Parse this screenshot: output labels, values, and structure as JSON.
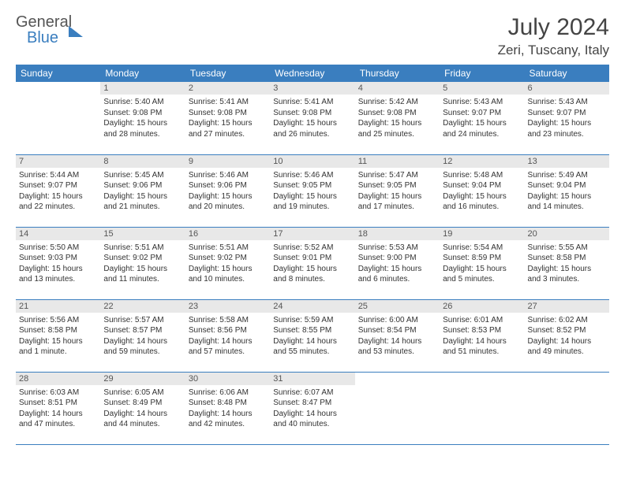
{
  "logo": {
    "line1": "General",
    "line2": "Blue"
  },
  "title": "July 2024",
  "location": "Zeri, Tuscany, Italy",
  "colors": {
    "accent": "#3a7ebf",
    "dayHeaderBg": "#e8e8e8",
    "text": "#333"
  },
  "weekdays": [
    "Sunday",
    "Monday",
    "Tuesday",
    "Wednesday",
    "Thursday",
    "Friday",
    "Saturday"
  ],
  "weeks": [
    [
      null,
      {
        "n": "1",
        "sr": "5:40 AM",
        "ss": "9:08 PM",
        "dl": "15 hours and 28 minutes."
      },
      {
        "n": "2",
        "sr": "5:41 AM",
        "ss": "9:08 PM",
        "dl": "15 hours and 27 minutes."
      },
      {
        "n": "3",
        "sr": "5:41 AM",
        "ss": "9:08 PM",
        "dl": "15 hours and 26 minutes."
      },
      {
        "n": "4",
        "sr": "5:42 AM",
        "ss": "9:08 PM",
        "dl": "15 hours and 25 minutes."
      },
      {
        "n": "5",
        "sr": "5:43 AM",
        "ss": "9:07 PM",
        "dl": "15 hours and 24 minutes."
      },
      {
        "n": "6",
        "sr": "5:43 AM",
        "ss": "9:07 PM",
        "dl": "15 hours and 23 minutes."
      }
    ],
    [
      {
        "n": "7",
        "sr": "5:44 AM",
        "ss": "9:07 PM",
        "dl": "15 hours and 22 minutes."
      },
      {
        "n": "8",
        "sr": "5:45 AM",
        "ss": "9:06 PM",
        "dl": "15 hours and 21 minutes."
      },
      {
        "n": "9",
        "sr": "5:46 AM",
        "ss": "9:06 PM",
        "dl": "15 hours and 20 minutes."
      },
      {
        "n": "10",
        "sr": "5:46 AM",
        "ss": "9:05 PM",
        "dl": "15 hours and 19 minutes."
      },
      {
        "n": "11",
        "sr": "5:47 AM",
        "ss": "9:05 PM",
        "dl": "15 hours and 17 minutes."
      },
      {
        "n": "12",
        "sr": "5:48 AM",
        "ss": "9:04 PM",
        "dl": "15 hours and 16 minutes."
      },
      {
        "n": "13",
        "sr": "5:49 AM",
        "ss": "9:04 PM",
        "dl": "15 hours and 14 minutes."
      }
    ],
    [
      {
        "n": "14",
        "sr": "5:50 AM",
        "ss": "9:03 PM",
        "dl": "15 hours and 13 minutes."
      },
      {
        "n": "15",
        "sr": "5:51 AM",
        "ss": "9:02 PM",
        "dl": "15 hours and 11 minutes."
      },
      {
        "n": "16",
        "sr": "5:51 AM",
        "ss": "9:02 PM",
        "dl": "15 hours and 10 minutes."
      },
      {
        "n": "17",
        "sr": "5:52 AM",
        "ss": "9:01 PM",
        "dl": "15 hours and 8 minutes."
      },
      {
        "n": "18",
        "sr": "5:53 AM",
        "ss": "9:00 PM",
        "dl": "15 hours and 6 minutes."
      },
      {
        "n": "19",
        "sr": "5:54 AM",
        "ss": "8:59 PM",
        "dl": "15 hours and 5 minutes."
      },
      {
        "n": "20",
        "sr": "5:55 AM",
        "ss": "8:58 PM",
        "dl": "15 hours and 3 minutes."
      }
    ],
    [
      {
        "n": "21",
        "sr": "5:56 AM",
        "ss": "8:58 PM",
        "dl": "15 hours and 1 minute."
      },
      {
        "n": "22",
        "sr": "5:57 AM",
        "ss": "8:57 PM",
        "dl": "14 hours and 59 minutes."
      },
      {
        "n": "23",
        "sr": "5:58 AM",
        "ss": "8:56 PM",
        "dl": "14 hours and 57 minutes."
      },
      {
        "n": "24",
        "sr": "5:59 AM",
        "ss": "8:55 PM",
        "dl": "14 hours and 55 minutes."
      },
      {
        "n": "25",
        "sr": "6:00 AM",
        "ss": "8:54 PM",
        "dl": "14 hours and 53 minutes."
      },
      {
        "n": "26",
        "sr": "6:01 AM",
        "ss": "8:53 PM",
        "dl": "14 hours and 51 minutes."
      },
      {
        "n": "27",
        "sr": "6:02 AM",
        "ss": "8:52 PM",
        "dl": "14 hours and 49 minutes."
      }
    ],
    [
      {
        "n": "28",
        "sr": "6:03 AM",
        "ss": "8:51 PM",
        "dl": "14 hours and 47 minutes."
      },
      {
        "n": "29",
        "sr": "6:05 AM",
        "ss": "8:49 PM",
        "dl": "14 hours and 44 minutes."
      },
      {
        "n": "30",
        "sr": "6:06 AM",
        "ss": "8:48 PM",
        "dl": "14 hours and 42 minutes."
      },
      {
        "n": "31",
        "sr": "6:07 AM",
        "ss": "8:47 PM",
        "dl": "14 hours and 40 minutes."
      },
      null,
      null,
      null
    ]
  ],
  "labels": {
    "sunrise": "Sunrise:",
    "sunset": "Sunset:",
    "daylight": "Daylight:"
  }
}
